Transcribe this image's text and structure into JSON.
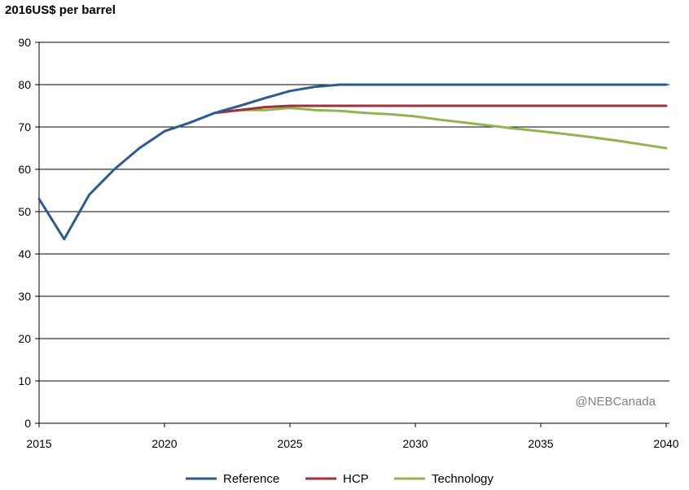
{
  "chart_data": {
    "type": "line",
    "ylabel": "2016US$ per barrel",
    "xlabel": "",
    "xlim": [
      2015,
      2040
    ],
    "ylim": [
      0,
      90
    ],
    "x_ticks": [
      2015,
      2020,
      2025,
      2030,
      2035,
      2040
    ],
    "y_ticks": [
      0,
      10,
      20,
      30,
      40,
      50,
      60,
      70,
      80,
      90
    ],
    "grid": "horizontal",
    "legend_position": "bottom",
    "watermark": "@NEBCanada",
    "series": [
      {
        "name": "Reference",
        "color": "#2e5a8e",
        "x": [
          2015,
          2016,
          2017,
          2018,
          2019,
          2020,
          2021,
          2022,
          2023,
          2024,
          2025,
          2026,
          2027,
          2028,
          2029,
          2030,
          2031,
          2032,
          2033,
          2034,
          2035,
          2036,
          2037,
          2038,
          2039,
          2040
        ],
        "values": [
          53,
          43.5,
          54,
          60,
          65,
          69,
          71,
          73.3,
          75,
          76.8,
          78.5,
          79.5,
          80,
          80,
          80,
          80,
          80,
          80,
          80,
          80,
          80,
          80,
          80,
          80,
          80,
          80
        ]
      },
      {
        "name": "HCP",
        "color": "#9e3236",
        "x": [
          2022,
          2023,
          2024,
          2025,
          2026,
          2027,
          2028,
          2029,
          2030,
          2031,
          2032,
          2033,
          2034,
          2035,
          2036,
          2037,
          2038,
          2039,
          2040
        ],
        "values": [
          73.3,
          74,
          74.7,
          75,
          75,
          75,
          75,
          75,
          75,
          75,
          75,
          75,
          75,
          75,
          75,
          75,
          75,
          75,
          75
        ]
      },
      {
        "name": "Technology",
        "color": "#92b44f",
        "x": [
          2022,
          2023,
          2024,
          2025,
          2026,
          2027,
          2028,
          2029,
          2030,
          2031,
          2032,
          2033,
          2034,
          2035,
          2036,
          2037,
          2038,
          2039,
          2040
        ],
        "values": [
          73.3,
          74,
          74,
          74.5,
          74,
          73.8,
          73.3,
          73,
          72.5,
          71.7,
          71,
          70.3,
          69.6,
          69,
          68.3,
          67.6,
          66.8,
          65.9,
          65
        ]
      }
    ]
  }
}
